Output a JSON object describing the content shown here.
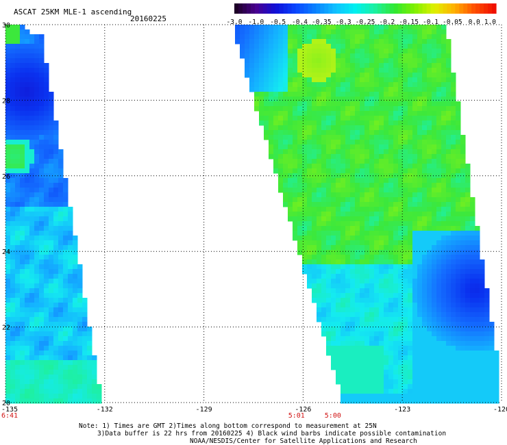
{
  "chart_data": {
    "type": "heatmap",
    "title": "ASCAT 25KM MLE-1 ascending",
    "date": "20160225",
    "xlim": [
      -135,
      -120
    ],
    "ylim": [
      20,
      30
    ],
    "x_ticks": [
      "-135",
      "-132",
      "-129",
      "-126",
      "-123",
      "-120"
    ],
    "y_ticks": [
      "30",
      "28",
      "26",
      "24",
      "22",
      "20"
    ],
    "grid": true,
    "colorbar": {
      "labels": [
        "-3.0",
        "-1.0",
        "-0.5",
        "-0.4",
        "-0.35",
        "-0.3",
        "-0.25",
        "-0.2",
        "-0.15",
        "-0.1",
        "-0.05",
        "0.0",
        "1.0"
      ],
      "colors": [
        "#1e0028",
        "#4a0090",
        "#1010d8",
        "#0a46ff",
        "#0a82ff",
        "#10c0ff",
        "#00f0f0",
        "#1cf0a0",
        "#30e830",
        "#80f000",
        "#e0f000",
        "#ffb000",
        "#ff5000",
        "#f01000"
      ]
    },
    "swath_times": [
      {
        "label": "6:41",
        "x": -135
      },
      {
        "label": "5:01",
        "x": -126.2
      },
      {
        "label": "5:00",
        "x": -125.1
      }
    ],
    "fields": [
      {
        "name": "west_swath",
        "value_range": [
          -0.5,
          -0.2
        ],
        "dominant_value": -0.3
      },
      {
        "name": "east_swath",
        "value_range": [
          -0.45,
          -0.1
        ],
        "dominant_value": -0.2
      }
    ]
  },
  "notes": {
    "line1": "Note: 1) Times are GMT 2)Times along bottom correspond to measurement at 25N",
    "line2": "3)Data buffer is 22 hrs from 20160225 4) Black wind barbs indicate possible contamination",
    "line3": "NOAA/NESDIS/Center for Satellite Applications and Research"
  }
}
